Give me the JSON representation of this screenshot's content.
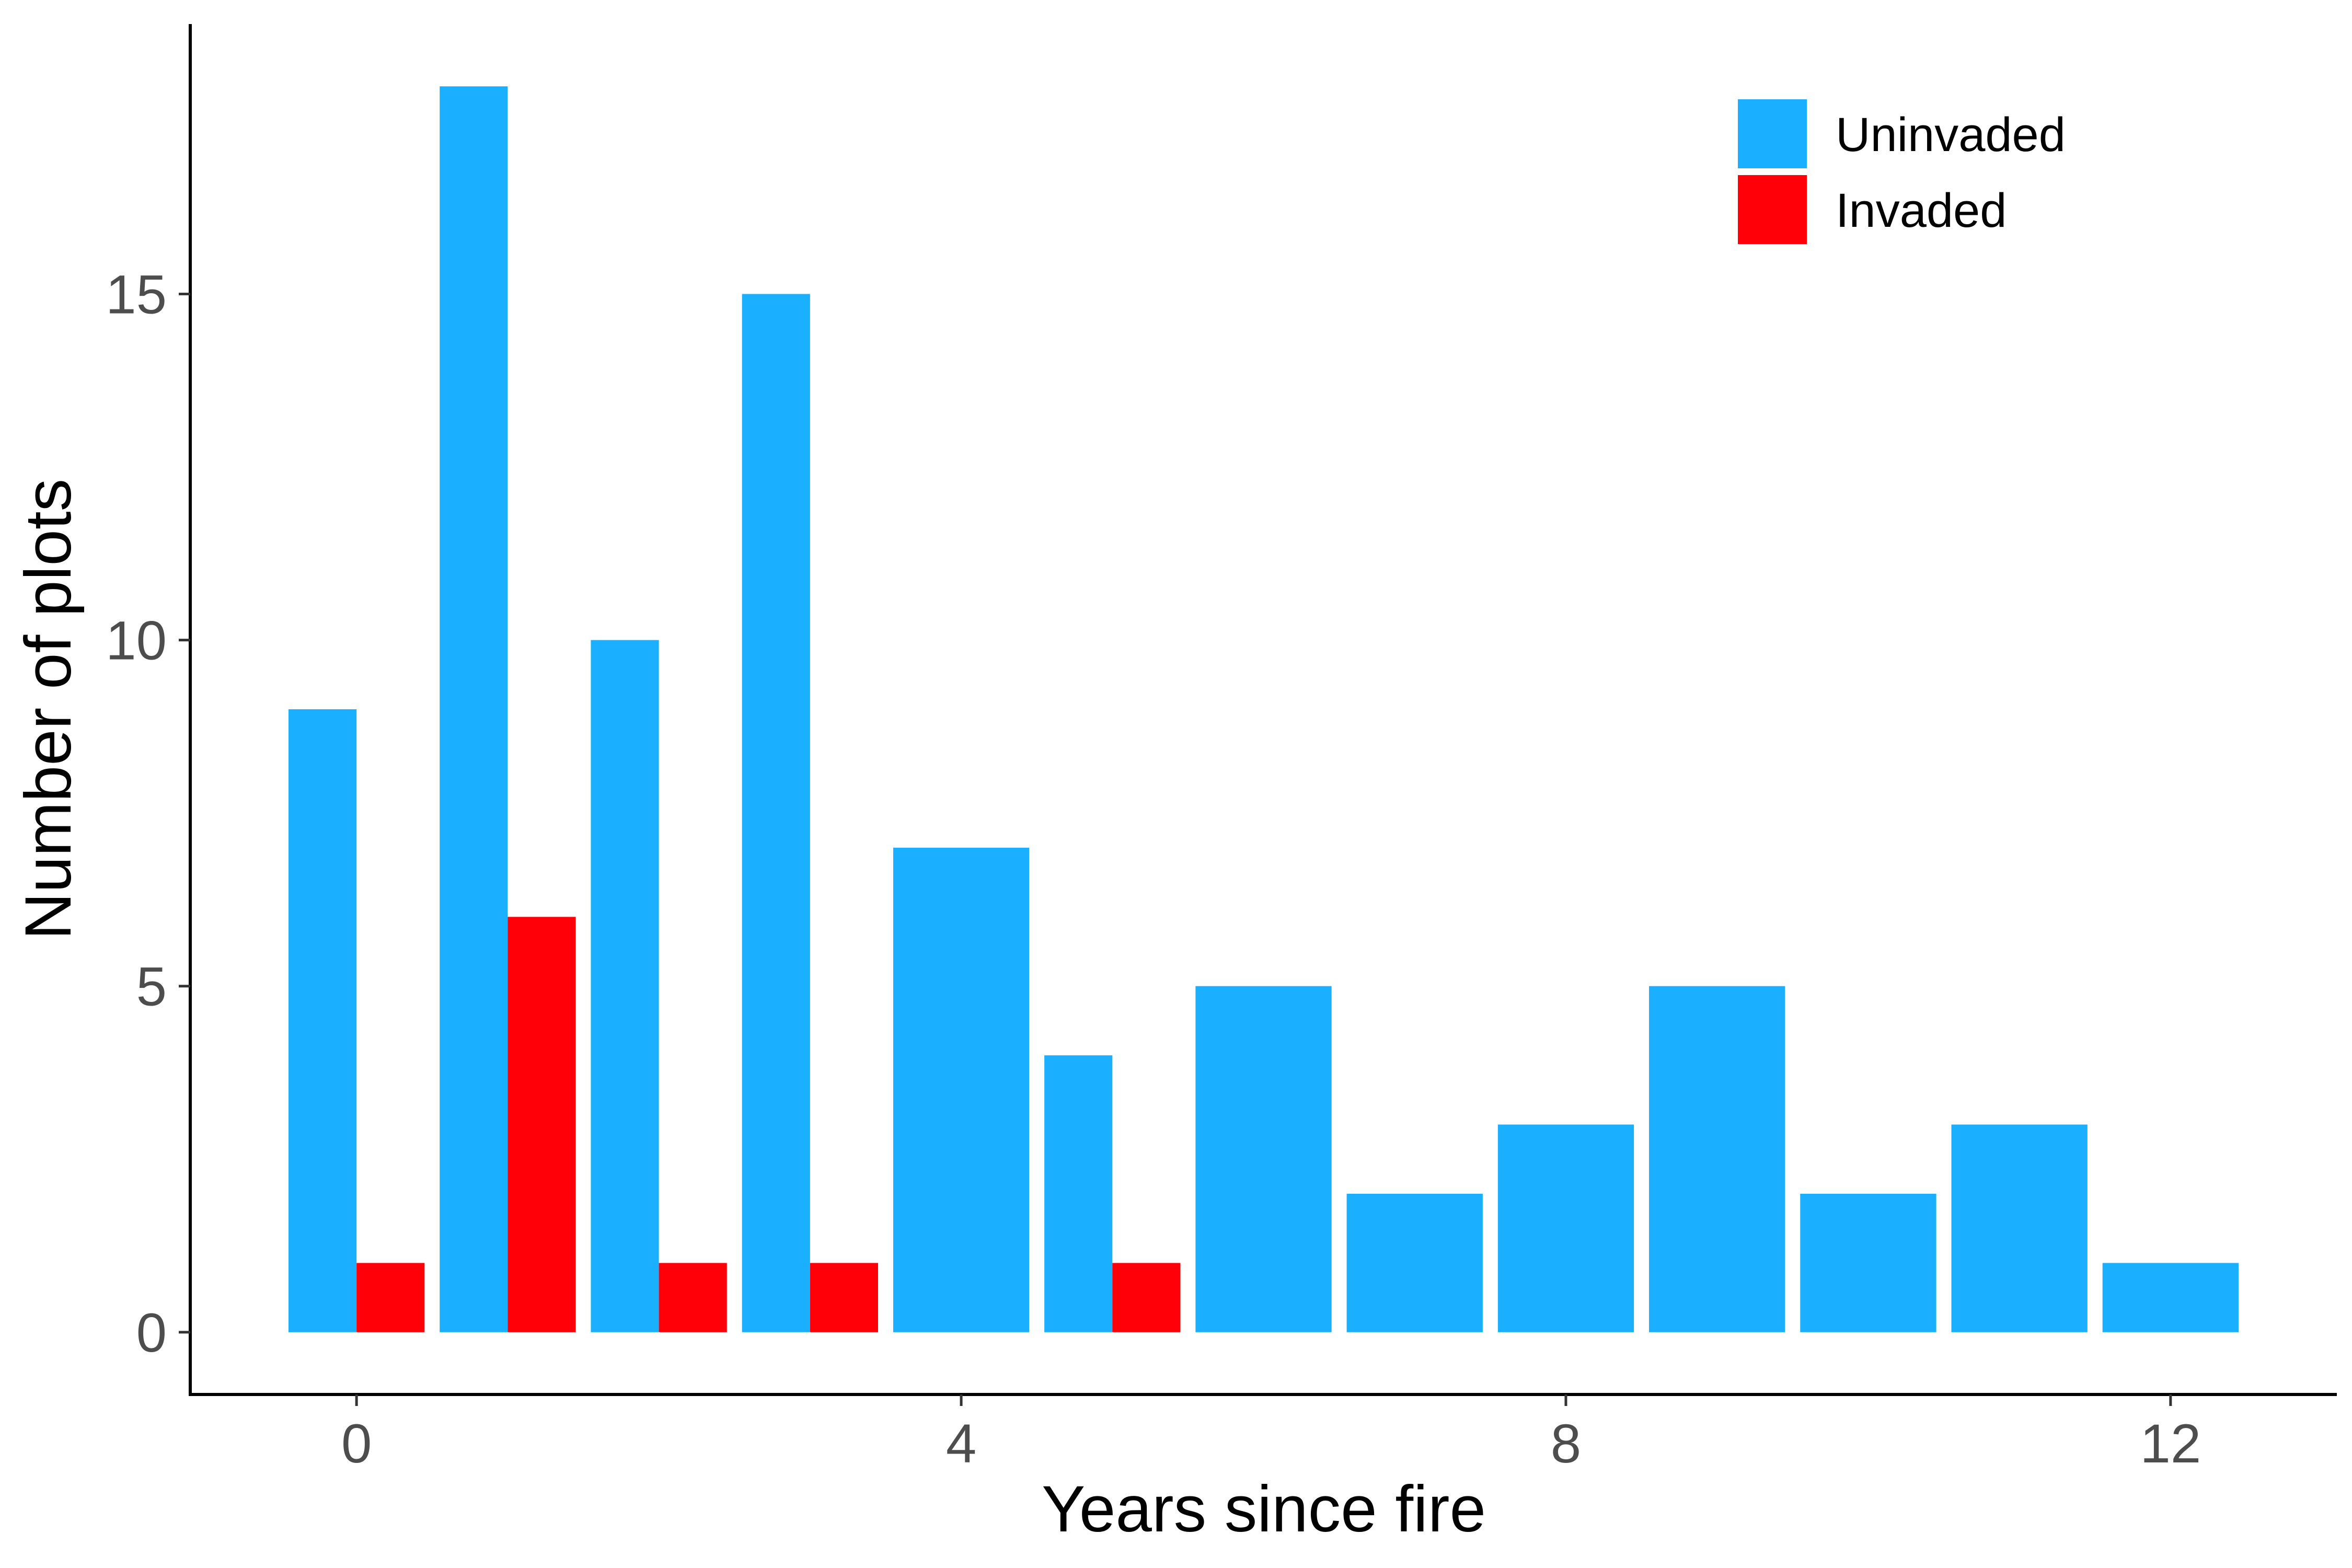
{
  "chart_data": {
    "type": "bar",
    "xlabel": "Years since fire",
    "ylabel": "Number of plots",
    "xlim": [
      -1.1,
      13.1
    ],
    "ylim": [
      -0.9,
      18.9
    ],
    "x_ticks": [
      0,
      4,
      8,
      12
    ],
    "y_ticks": [
      0,
      5,
      10,
      15
    ],
    "grid": false,
    "legend_position": "top-right",
    "series": [
      {
        "name": "Uninvaded",
        "color": "#1AB0FF",
        "bars": [
          {
            "x_start": -0.45,
            "x_end": 0.0,
            "value": 9
          },
          {
            "x_start": 0.55,
            "x_end": 1.0,
            "value": 18
          },
          {
            "x_start": 1.55,
            "x_end": 2.0,
            "value": 10
          },
          {
            "x_start": 2.55,
            "x_end": 3.0,
            "value": 15
          },
          {
            "x_start": 3.55,
            "x_end": 4.45,
            "value": 7
          },
          {
            "x_start": 4.55,
            "x_end": 5.0,
            "value": 4
          },
          {
            "x_start": 5.55,
            "x_end": 6.45,
            "value": 5
          },
          {
            "x_start": 6.55,
            "x_end": 7.45,
            "value": 2
          },
          {
            "x_start": 7.55,
            "x_end": 8.45,
            "value": 3
          },
          {
            "x_start": 8.55,
            "x_end": 9.45,
            "value": 5
          },
          {
            "x_start": 9.55,
            "x_end": 10.45,
            "value": 2
          },
          {
            "x_start": 10.55,
            "x_end": 11.45,
            "value": 3
          },
          {
            "x_start": 11.55,
            "x_end": 12.45,
            "value": 1
          }
        ]
      },
      {
        "name": "Invaded",
        "color": "#FF0008",
        "bars": [
          {
            "x_start": 0.0,
            "x_end": 0.45,
            "value": 1
          },
          {
            "x_start": 1.0,
            "x_end": 1.45,
            "value": 6
          },
          {
            "x_start": 2.0,
            "x_end": 2.45,
            "value": 1
          },
          {
            "x_start": 3.0,
            "x_end": 3.45,
            "value": 1
          },
          {
            "x_start": 5.0,
            "x_end": 5.45,
            "value": 1
          }
        ]
      }
    ]
  }
}
